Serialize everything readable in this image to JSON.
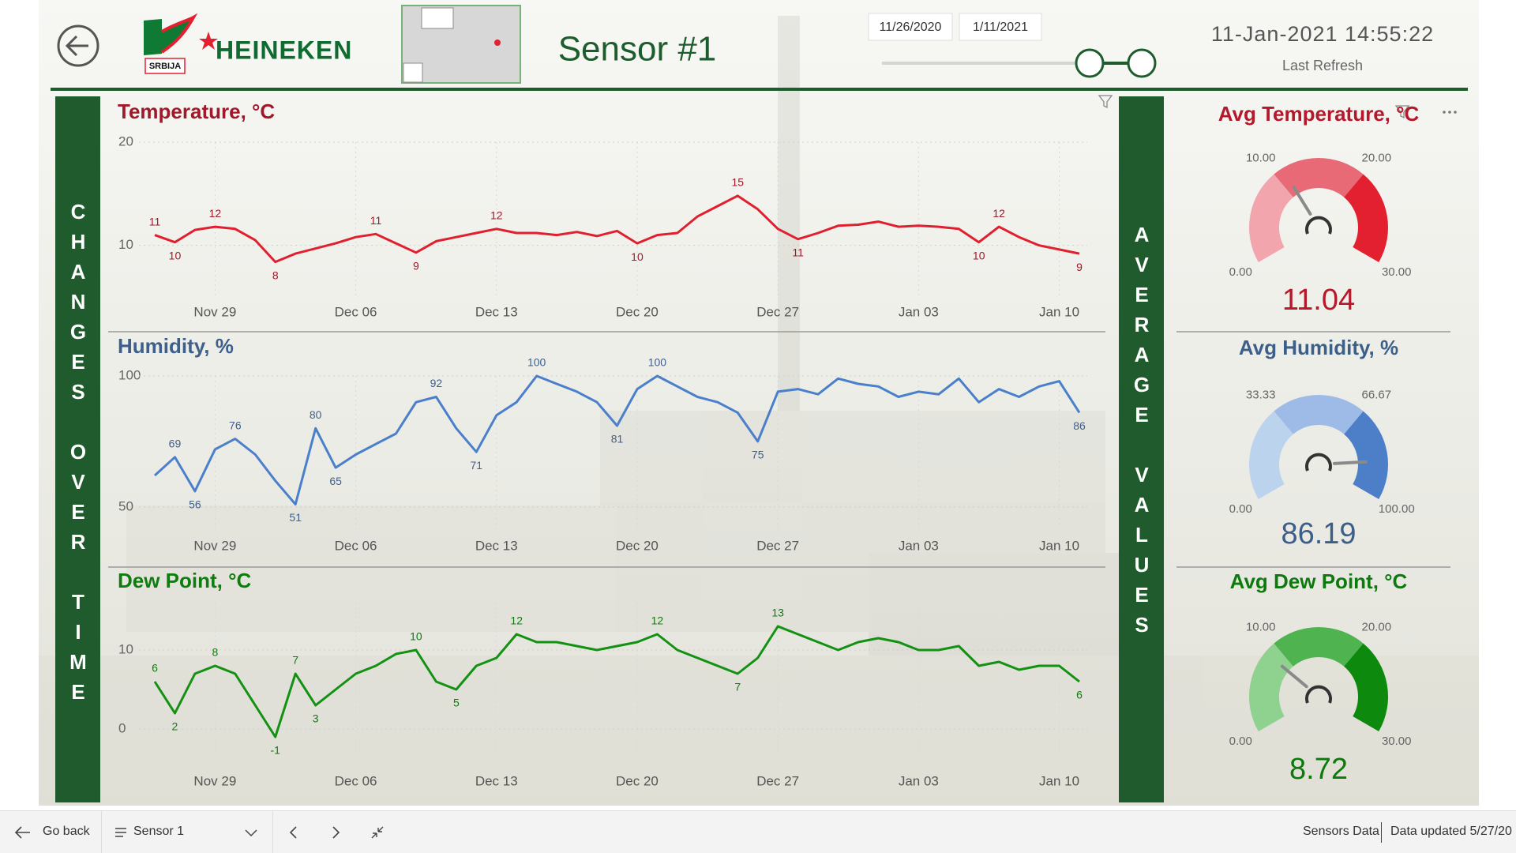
{
  "header": {
    "brand_sub": "SRBIJA",
    "brand": "HEINEKEN",
    "title": "Sensor #1",
    "date_from": "11/26/2020",
    "date_to": "1/11/2021",
    "refresh_time": "11-Jan-2021 14:55:22",
    "refresh_label": "Last Refresh"
  },
  "banners": {
    "left": "CHANGES OVER TIME",
    "right": "AVERAGE VALUES"
  },
  "chart_data": [
    {
      "type": "line",
      "title": "Temperature, °C",
      "color": "#e0202e",
      "title_color": "#a0182a",
      "categories": [
        null,
        null,
        null,
        "Nov 29",
        null,
        null,
        null,
        null,
        null,
        null,
        "Dec 06",
        null,
        null,
        null,
        null,
        null,
        null,
        "Dec 13",
        null,
        null,
        null,
        null,
        null,
        null,
        "Dec 20",
        null,
        null,
        null,
        null,
        null,
        null,
        "Dec 27",
        null,
        null,
        null,
        null,
        null,
        null,
        "Jan 03",
        null,
        null,
        null,
        null,
        null,
        null,
        "Jan 10",
        null
      ],
      "values": [
        11.0,
        10.3,
        11.5,
        11.8,
        11.6,
        10.5,
        8.4,
        9.2,
        9.7,
        10.2,
        10.8,
        11.1,
        10.2,
        9.3,
        10.4,
        10.8,
        11.2,
        11.6,
        11.2,
        11.2,
        11.0,
        11.3,
        10.9,
        11.4,
        10.2,
        11.0,
        11.2,
        12.8,
        13.8,
        14.8,
        13.5,
        11.6,
        10.6,
        11.2,
        11.9,
        12.0,
        12.3,
        11.8,
        11.9,
        11.8,
        11.6,
        10.3,
        11.8,
        10.8,
        10.0,
        9.6,
        9.2
      ],
      "value_labels": [
        "11",
        "10",
        null,
        "12",
        null,
        null,
        "8",
        null,
        null,
        null,
        null,
        "11",
        null,
        "9",
        null,
        null,
        null,
        "12",
        null,
        null,
        null,
        null,
        null,
        null,
        "10",
        null,
        null,
        null,
        null,
        "15",
        null,
        null,
        "11",
        null,
        null,
        null,
        null,
        null,
        null,
        null,
        null,
        "10",
        "12",
        null,
        null,
        null,
        "9"
      ],
      "ylim": [
        5,
        20
      ],
      "yticks": [
        10,
        20
      ],
      "grid": true
    },
    {
      "type": "line",
      "title": "Humidity, %",
      "color": "#4a7fcb",
      "title_color": "#3e5f8c",
      "categories": [
        null,
        null,
        null,
        "Nov 29",
        null,
        null,
        null,
        null,
        null,
        null,
        "Dec 06",
        null,
        null,
        null,
        null,
        null,
        null,
        "Dec 13",
        null,
        null,
        null,
        null,
        null,
        null,
        "Dec 20",
        null,
        null,
        null,
        null,
        null,
        null,
        "Dec 27",
        null,
        null,
        null,
        null,
        null,
        null,
        "Jan 03",
        null,
        null,
        null,
        null,
        null,
        null,
        "Jan 10",
        null
      ],
      "values": [
        62,
        69,
        56,
        72,
        76,
        70,
        60,
        51,
        80,
        65,
        70,
        74,
        78,
        90,
        92,
        80,
        71,
        85,
        90,
        100,
        97,
        94,
        90,
        81,
        95,
        100,
        96,
        92,
        90,
        86,
        75,
        94,
        95,
        93,
        99,
        97,
        96,
        92,
        94,
        93,
        99,
        90,
        95,
        92,
        96,
        98,
        86
      ],
      "value_labels": [
        null,
        "69",
        "56",
        null,
        "76",
        null,
        null,
        "51",
        "80",
        "65",
        null,
        null,
        null,
        null,
        "92",
        null,
        "71",
        null,
        null,
        "100",
        null,
        null,
        null,
        "81",
        null,
        "100",
        null,
        null,
        null,
        null,
        "75",
        null,
        null,
        null,
        null,
        null,
        null,
        null,
        null,
        null,
        null,
        null,
        null,
        null,
        null,
        null,
        "86"
      ],
      "ylim": [
        40,
        100
      ],
      "yticks": [
        50,
        100
      ],
      "grid": true
    },
    {
      "type": "line",
      "title": "Dew Point, °C",
      "color": "#129112",
      "title_color": "#0d7d0d",
      "categories": [
        null,
        null,
        null,
        "Nov 29",
        null,
        null,
        null,
        null,
        null,
        null,
        "Dec 06",
        null,
        null,
        null,
        null,
        null,
        null,
        "Dec 13",
        null,
        null,
        null,
        null,
        null,
        null,
        "Dec 20",
        null,
        null,
        null,
        null,
        null,
        null,
        "Dec 27",
        null,
        null,
        null,
        null,
        null,
        null,
        "Jan 03",
        null,
        null,
        null,
        null,
        null,
        null,
        "Jan 10",
        null
      ],
      "values": [
        6,
        2,
        7,
        8,
        7,
        3,
        -1,
        7,
        3,
        5,
        7,
        8,
        9.5,
        10,
        6,
        5,
        8,
        9,
        12,
        11,
        11,
        10.5,
        10,
        10.5,
        11,
        12,
        10,
        9,
        8,
        7,
        9,
        13,
        12,
        11,
        10,
        11,
        11.5,
        11,
        10,
        10,
        10.5,
        8,
        8.5,
        7.5,
        8,
        8,
        6
      ],
      "value_labels": [
        "6",
        "2",
        null,
        "8",
        null,
        null,
        "-1",
        "7",
        "3",
        null,
        null,
        null,
        null,
        "10",
        null,
        "5",
        null,
        null,
        "12",
        null,
        null,
        null,
        null,
        null,
        null,
        "12",
        null,
        null,
        null,
        "7",
        null,
        "13",
        null,
        null,
        null,
        null,
        null,
        null,
        null,
        null,
        null,
        null,
        null,
        null,
        null,
        null,
        "6"
      ],
      "ylim": [
        -3,
        16
      ],
      "yticks": [
        0,
        10
      ],
      "grid": true
    },
    {
      "type": "gauge",
      "title": "Avg Temperature, °C",
      "value": 11.04,
      "color": "#b5172b",
      "colors": [
        "#f2a5ad",
        "#e86a76",
        "#e3202f"
      ],
      "ylim": [
        0,
        30
      ],
      "yticks": [
        {
          "value": 0,
          "label": "0.00"
        },
        {
          "value": 10,
          "label": "10.00"
        },
        {
          "value": 20,
          "label": "20.00"
        },
        {
          "value": 30,
          "label": "30.00"
        }
      ]
    },
    {
      "type": "gauge",
      "title": "Avg Humidity, %",
      "value": 86.19,
      "color": "#3c5f8a",
      "colors": [
        "#bcd3ee",
        "#9dbbe6",
        "#4d7fc9"
      ],
      "ylim": [
        0,
        100
      ],
      "yticks": [
        {
          "value": 0,
          "label": "0.00"
        },
        33.33,
        66.67,
        {
          "value": 100,
          "label": "100.00"
        }
      ]
    },
    {
      "type": "gauge",
      "title": "Avg Dew Point, °C",
      "value": 8.72,
      "color": "#0d7a0d",
      "colors": [
        "#8fd18f",
        "#4fb34f",
        "#0d8a0d"
      ],
      "ylim": [
        0,
        30
      ],
      "yticks": [
        {
          "value": 0,
          "label": "0.00"
        },
        {
          "value": 10,
          "label": "10.00"
        },
        {
          "value": 20,
          "label": "20.00"
        },
        {
          "value": 30,
          "label": "30.00"
        }
      ]
    }
  ],
  "footer": {
    "back": "Go back",
    "page": "Sensor 1",
    "source": "Sensors Data",
    "updated": "Data updated 5/27/20"
  }
}
